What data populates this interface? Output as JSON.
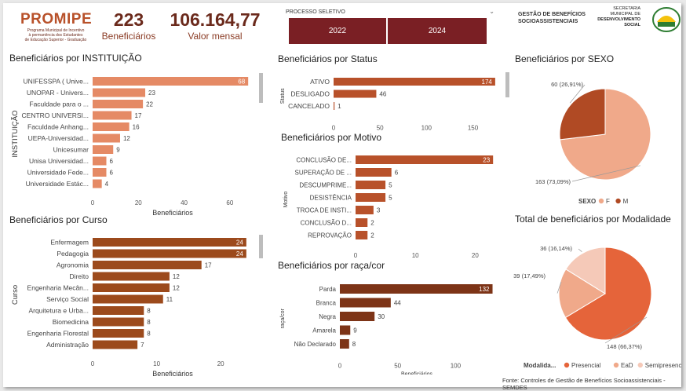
{
  "header": {
    "logo_title": "PROMIPE",
    "logo_sub1": "Programa Municipal de Incentivo",
    "logo_sub2": "à permanência dos Estudantes",
    "logo_sub3": "de Educação Superior - Graduação",
    "kpi_beneficiarios": {
      "value": "223",
      "label": "Beneficiários"
    },
    "kpi_valor": {
      "value": "106.164,77",
      "label": "Valor mensal"
    },
    "filter_label": "PROCESSO SELETIVO",
    "years": [
      "2022",
      "2024"
    ],
    "gestao_line1": "GESTÃO DE BENEFÍCIOS",
    "gestao_line2": "SOCIOASSISTENCIAIS",
    "semdes_line1": "SECRETARIA",
    "semdes_line2": "MUNICIPAL DE",
    "semdes_line3": "DESENVOLVIMENTO",
    "semdes_line4": "SOCIAL"
  },
  "colors": {
    "brown_dark": "#7a1f24",
    "bar_salmon": "#e58a65",
    "bar_brown": "#9c4a1c",
    "bar_rust": "#b8512a",
    "bar_race": "#7d3417",
    "pie_f": "#f0a98a",
    "pie_m": "#b04a24",
    "pie_presencial": "#e5643a",
    "pie_ead": "#f0a98a",
    "pie_semi": "#f5c9b8"
  },
  "footer": "Fonte: Controles de Gestão de Benefícios Socioassistenciais - SEMDES",
  "chart_data": [
    {
      "type": "bar",
      "title": "Beneficiários por INSTITUIÇÃO",
      "ylabel": "INSTITUIÇÃO",
      "xlabel": "Beneficiários",
      "categories": [
        "UNIFESSPA ( Unive...",
        "UNOPAR - Univers...",
        "Faculdade para o ...",
        "CENTRO UNIVERSI...",
        "Faculdade Anhang...",
        "UEPA-Universidad...",
        "Unicesumar",
        "Unisa Universidad...",
        "Universidade Fede...",
        "Universidade Estác..."
      ],
      "values": [
        68,
        23,
        22,
        17,
        16,
        12,
        9,
        6,
        6,
        4
      ],
      "xticks": [
        "0",
        "20",
        "40",
        "60"
      ],
      "xlim": [
        0,
        70
      ]
    },
    {
      "type": "bar",
      "title": "Beneficiários por Curso",
      "ylabel": "Curso",
      "xlabel": "Beneficiários",
      "categories": [
        "Enfermagem",
        "Pedagogia",
        "Agronomia",
        "Direito",
        "Engenharia Mecân...",
        "Serviço Social",
        "Arquitetura e Urba...",
        "Biomedicina",
        "Engenharia Florestal",
        "Administração"
      ],
      "values": [
        24,
        24,
        17,
        12,
        12,
        11,
        8,
        8,
        8,
        7
      ],
      "xticks": [
        "0",
        "10",
        "20"
      ],
      "xlim": [
        0,
        25
      ]
    },
    {
      "type": "bar",
      "title": "Beneficiários por Status",
      "ylabel": "Status",
      "categories": [
        "ATIVO",
        "DESLIGADO",
        "CANCELADO"
      ],
      "values": [
        174,
        46,
        1
      ],
      "xticks": [
        "0",
        "50",
        "100",
        "150"
      ],
      "xlim": [
        0,
        180
      ]
    },
    {
      "type": "bar",
      "title": "Beneficiários por Motivo",
      "ylabel": "Motivo",
      "xlabel": "Beneficiários",
      "categories": [
        "CONCLUSÃO DE...",
        "SUPERAÇÃO DE ...",
        "DESCUMPRIME...",
        "DESISTÊNCIA",
        "TROCA DE INSTI...",
        "CONCLUSÃO D...",
        "REPROVAÇÃO"
      ],
      "values": [
        23,
        6,
        5,
        5,
        3,
        2,
        2
      ],
      "xticks": [
        "0",
        "10",
        "20"
      ],
      "xlim": [
        0,
        23.5
      ]
    },
    {
      "type": "bar",
      "title": "Beneficiários por raça/cor",
      "ylabel": "raça/cor",
      "xlabel": "Beneficiários",
      "categories": [
        "Parda",
        "Branca",
        "Negra",
        "Amarela",
        "Não Declarado"
      ],
      "values": [
        132,
        44,
        30,
        9,
        8
      ],
      "xticks": [
        "0",
        "50",
        "100"
      ],
      "xlim": [
        0,
        133
      ]
    },
    {
      "type": "pie",
      "title": "Beneficiários por SEXO",
      "legend_title": "SEXO",
      "labels": [
        "F",
        "M"
      ],
      "values": [
        163,
        60
      ],
      "data_labels": [
        "163 (73,09%)",
        "60 (26,91%)"
      ]
    },
    {
      "type": "pie",
      "title": "Total de beneficiários por Modalidade",
      "legend_title": "Modalida...",
      "labels": [
        "Presencial",
        "EaD",
        "Semipresencial"
      ],
      "values": [
        148,
        39,
        36
      ],
      "data_labels": [
        "148 (66,37%)",
        "39 (17,49%)",
        "36 (16,14%)"
      ]
    }
  ]
}
